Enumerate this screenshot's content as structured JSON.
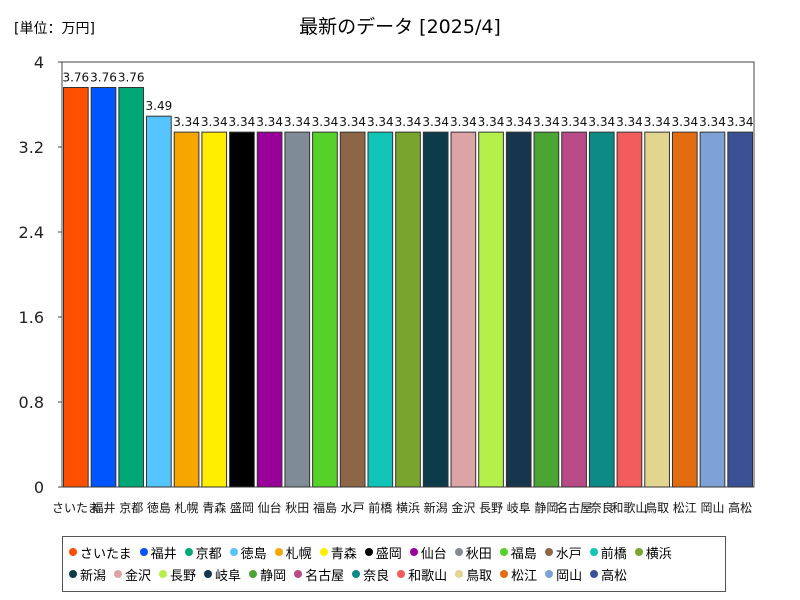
{
  "header": {
    "unit": "[単位：万円]"
  },
  "chart_data": {
    "type": "bar",
    "title": "最新のデータ [2025/4]",
    "xlabel": "",
    "ylabel": "",
    "ylim": [
      0,
      4
    ],
    "yticks": [
      "0",
      "0.8",
      "1.6",
      "2.4",
      "3.2",
      "4"
    ],
    "grid": false,
    "legend_position": "bottom",
    "categories": [
      "さいたま",
      "福井",
      "京都",
      "徳島",
      "札幌",
      "青森",
      "盛岡",
      "仙台",
      "秋田",
      "福島",
      "水戸",
      "前橋",
      "横浜",
      "新潟",
      "金沢",
      "長野",
      "岐阜",
      "静岡",
      "名古屋",
      "奈良",
      "和歌山",
      "鳥取",
      "松江",
      "岡山",
      "高松"
    ],
    "values": [
      3.76,
      3.76,
      3.76,
      3.49,
      3.34,
      3.34,
      3.34,
      3.34,
      3.34,
      3.34,
      3.34,
      3.34,
      3.34,
      3.34,
      3.34,
      3.34,
      3.34,
      3.34,
      3.34,
      3.34,
      3.34,
      3.34,
      3.34,
      3.34,
      3.34
    ],
    "value_labels": [
      "3.76",
      "3.76",
      "3.76",
      "3.49",
      "3.34",
      "3.34",
      "3.34",
      "3.34",
      "3.34",
      "3.34",
      "3.34",
      "3.34",
      "3.34",
      "3.34",
      "3.34",
      "3.34",
      "3.34",
      "3.34",
      "3.34",
      "3.34",
      "3.34",
      "3.34",
      "3.34",
      "3.34",
      "3.34"
    ],
    "colors": [
      "#ff4f00",
      "#0055ff",
      "#00a878",
      "#55c4ff",
      "#f7a600",
      "#ffee00",
      "#000000",
      "#990099",
      "#7f8c97",
      "#55d12a",
      "#8c6647",
      "#11c4b8",
      "#77a52e",
      "#0d3b4a",
      "#dda4a7",
      "#b5f04a",
      "#17354d",
      "#4ba535",
      "#b84a86",
      "#0d8a85",
      "#f25c5c",
      "#e2d58f",
      "#e36b10",
      "#7ea2d6",
      "#3b5196"
    ]
  }
}
